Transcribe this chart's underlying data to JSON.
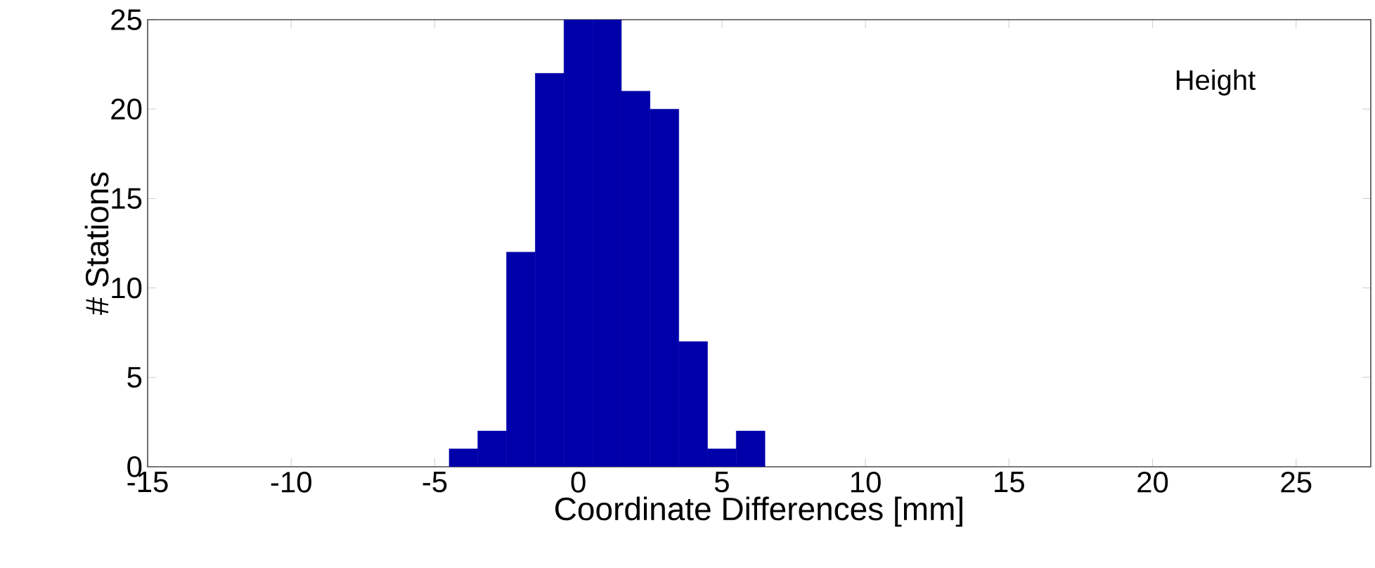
{
  "chart_data": {
    "type": "histogram",
    "xlabel": "Coordinate Differences [mm]",
    "ylabel": "# Stations",
    "annotations": [
      "Height"
    ],
    "bins": [
      -4.5,
      -3.5,
      -2.5,
      -1.5,
      -0.5,
      0.5,
      1.5,
      2.5,
      3.5,
      4.5,
      5.5,
      6.5
    ],
    "values": [
      1,
      2,
      12,
      22,
      25,
      25,
      21,
      20,
      7,
      1,
      2
    ],
    "color": "#0000aa",
    "xlim": [
      -15,
      27.6
    ],
    "ylim": [
      0,
      25
    ],
    "xticks": [
      -15,
      -10,
      -5,
      0,
      5,
      10,
      15,
      20,
      25
    ],
    "yticks": [
      0,
      5,
      10,
      15,
      20,
      25
    ],
    "grid": false
  }
}
